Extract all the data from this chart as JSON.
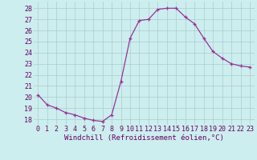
{
  "x": [
    0,
    1,
    2,
    3,
    4,
    5,
    6,
    7,
    8,
    9,
    10,
    11,
    12,
    13,
    14,
    15,
    16,
    17,
    18,
    19,
    20,
    21,
    22,
    23
  ],
  "y": [
    20.2,
    19.3,
    19.0,
    18.6,
    18.4,
    18.1,
    17.9,
    17.8,
    18.4,
    21.4,
    25.3,
    26.9,
    27.0,
    27.9,
    28.0,
    28.0,
    27.2,
    26.6,
    25.3,
    24.1,
    23.5,
    23.0,
    22.8,
    22.7
  ],
  "line_color": "#993399",
  "marker": "+",
  "marker_size": 3.5,
  "linewidth": 0.9,
  "markeredgewidth": 0.9,
  "xlabel": "Windchill (Refroidissement éolien,°C)",
  "xlabel_fontsize": 6.5,
  "xtick_labels": [
    "0",
    "1",
    "2",
    "3",
    "4",
    "5",
    "6",
    "7",
    "8",
    "9",
    "10",
    "11",
    "12",
    "13",
    "14",
    "15",
    "16",
    "17",
    "18",
    "19",
    "20",
    "21",
    "22",
    "23"
  ],
  "ytick_values": [
    18,
    19,
    20,
    21,
    22,
    23,
    24,
    25,
    26,
    27,
    28
  ],
  "ylim": [
    17.5,
    28.6
  ],
  "xlim": [
    -0.5,
    23.5
  ],
  "grid_color": "#aacccc",
  "bg_color": "#cceeee",
  "tick_label_fontsize": 6.0,
  "fig_bg_color": "#cceeee",
  "text_color": "#660066"
}
